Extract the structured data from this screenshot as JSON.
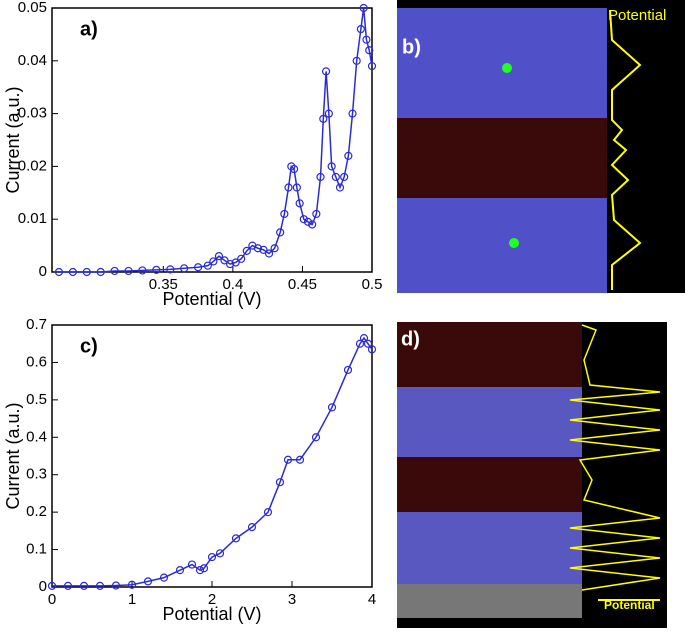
{
  "chart_data": [
    {
      "type": "line",
      "annotation": "a)",
      "xlabel": "Potential (V)",
      "ylabel": "Current (a.u.)",
      "xlim": [
        0.27,
        0.5
      ],
      "xticks": [
        0.35,
        0.4,
        0.45,
        0.5
      ],
      "ylim": [
        0,
        0.05
      ],
      "yticks": [
        0,
        0.01,
        0.02,
        0.03,
        0.04,
        0.05
      ],
      "series": [
        {
          "color": "#2b2bd6",
          "x": [
            0.275,
            0.285,
            0.295,
            0.305,
            0.315,
            0.325,
            0.335,
            0.345,
            0.355,
            0.365,
            0.375,
            0.382,
            0.386,
            0.39,
            0.394,
            0.398,
            0.402,
            0.406,
            0.41,
            0.414,
            0.418,
            0.422,
            0.426,
            0.43,
            0.434,
            0.437,
            0.44,
            0.442,
            0.444,
            0.446,
            0.448,
            0.451,
            0.454,
            0.457,
            0.46,
            0.463,
            0.465,
            0.467,
            0.469,
            0.471,
            0.474,
            0.477,
            0.48,
            0.483,
            0.486,
            0.489,
            0.492,
            0.494,
            0.496,
            0.498,
            0.5
          ],
          "values": [
            0,
            0,
            0,
            0,
            0.0002,
            0.0002,
            0.0003,
            0.0004,
            0.0005,
            0.0007,
            0.0009,
            0.0012,
            0.002,
            0.003,
            0.0022,
            0.0015,
            0.0018,
            0.0025,
            0.004,
            0.005,
            0.0045,
            0.0042,
            0.0035,
            0.0045,
            0.0075,
            0.011,
            0.016,
            0.02,
            0.0195,
            0.016,
            0.013,
            0.01,
            0.0095,
            0.009,
            0.011,
            0.018,
            0.029,
            0.038,
            0.03,
            0.02,
            0.018,
            0.016,
            0.018,
            0.022,
            0.03,
            0.04,
            0.046,
            0.05,
            0.044,
            0.042,
            0.039
          ]
        }
      ]
    },
    {
      "type": "line",
      "annotation": "c)",
      "xlabel": "Potential (V)",
      "ylabel": "Current (a.u.)",
      "xlim": [
        0,
        4
      ],
      "xticks": [
        0,
        1,
        2,
        3,
        4
      ],
      "ylim": [
        0,
        0.7
      ],
      "yticks": [
        0,
        0.1,
        0.2,
        0.3,
        0.4,
        0.5,
        0.6,
        0.7
      ],
      "series": [
        {
          "color": "#2b2bd6",
          "x": [
            0,
            0.2,
            0.4,
            0.6,
            0.8,
            1.0,
            1.2,
            1.4,
            1.6,
            1.75,
            1.85,
            1.9,
            2.0,
            2.1,
            2.3,
            2.5,
            2.7,
            2.85,
            2.95,
            3.1,
            3.3,
            3.5,
            3.7,
            3.85,
            3.9,
            3.95,
            4.0
          ],
          "values": [
            0.003,
            0.003,
            0.003,
            0.003,
            0.004,
            0.006,
            0.015,
            0.025,
            0.045,
            0.06,
            0.045,
            0.05,
            0.08,
            0.09,
            0.13,
            0.16,
            0.2,
            0.28,
            0.34,
            0.34,
            0.4,
            0.48,
            0.58,
            0.65,
            0.665,
            0.65,
            0.635
          ]
        }
      ]
    }
  ],
  "images": [
    {
      "label": "b)",
      "annotation": "Potential"
    },
    {
      "label": "d)",
      "annotation": "Potential"
    }
  ]
}
